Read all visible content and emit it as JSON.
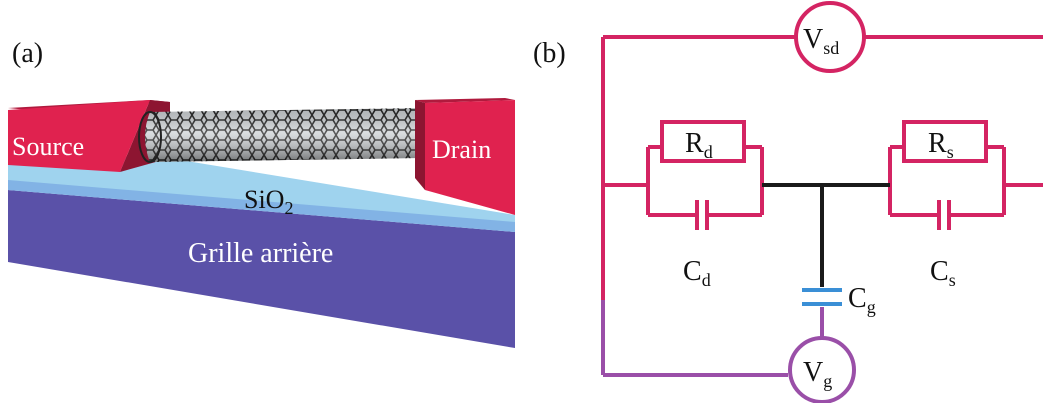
{
  "panel_a": {
    "label": "(a)",
    "source_label": "Source",
    "drain_label": "Drain",
    "oxide_label": "SiO",
    "oxide_subscript": "2",
    "gate_label": "Grille arrière",
    "colors": {
      "contact_face": "#e0224f",
      "contact_top": "#b01a3d",
      "contact_side": "#8d1531",
      "oxide_top": "#9fd3ee",
      "oxide_side": "#6f9fe0",
      "gate": "#5a51a8",
      "gate_side": "#4a4596",
      "nanotube": "#2a2a2a"
    }
  },
  "panel_b": {
    "label": "(b)",
    "vsd": {
      "symbol": "V",
      "subscript": "sd"
    },
    "vg": {
      "symbol": "V",
      "subscript": "g"
    },
    "rd": {
      "symbol": "R",
      "subscript": "d"
    },
    "rs": {
      "symbol": "R",
      "subscript": "s"
    },
    "cd": {
      "symbol": "C",
      "subscript": "d"
    },
    "cs": {
      "symbol": "C",
      "subscript": "s"
    },
    "cg": {
      "symbol": "C",
      "subscript": "g"
    },
    "colors": {
      "source_drain_wire": "#d42463",
      "gate_wire": "#9a4fa8",
      "node_wire": "#1a1a1a",
      "gate_capacitor": "#3a8fd6"
    }
  }
}
